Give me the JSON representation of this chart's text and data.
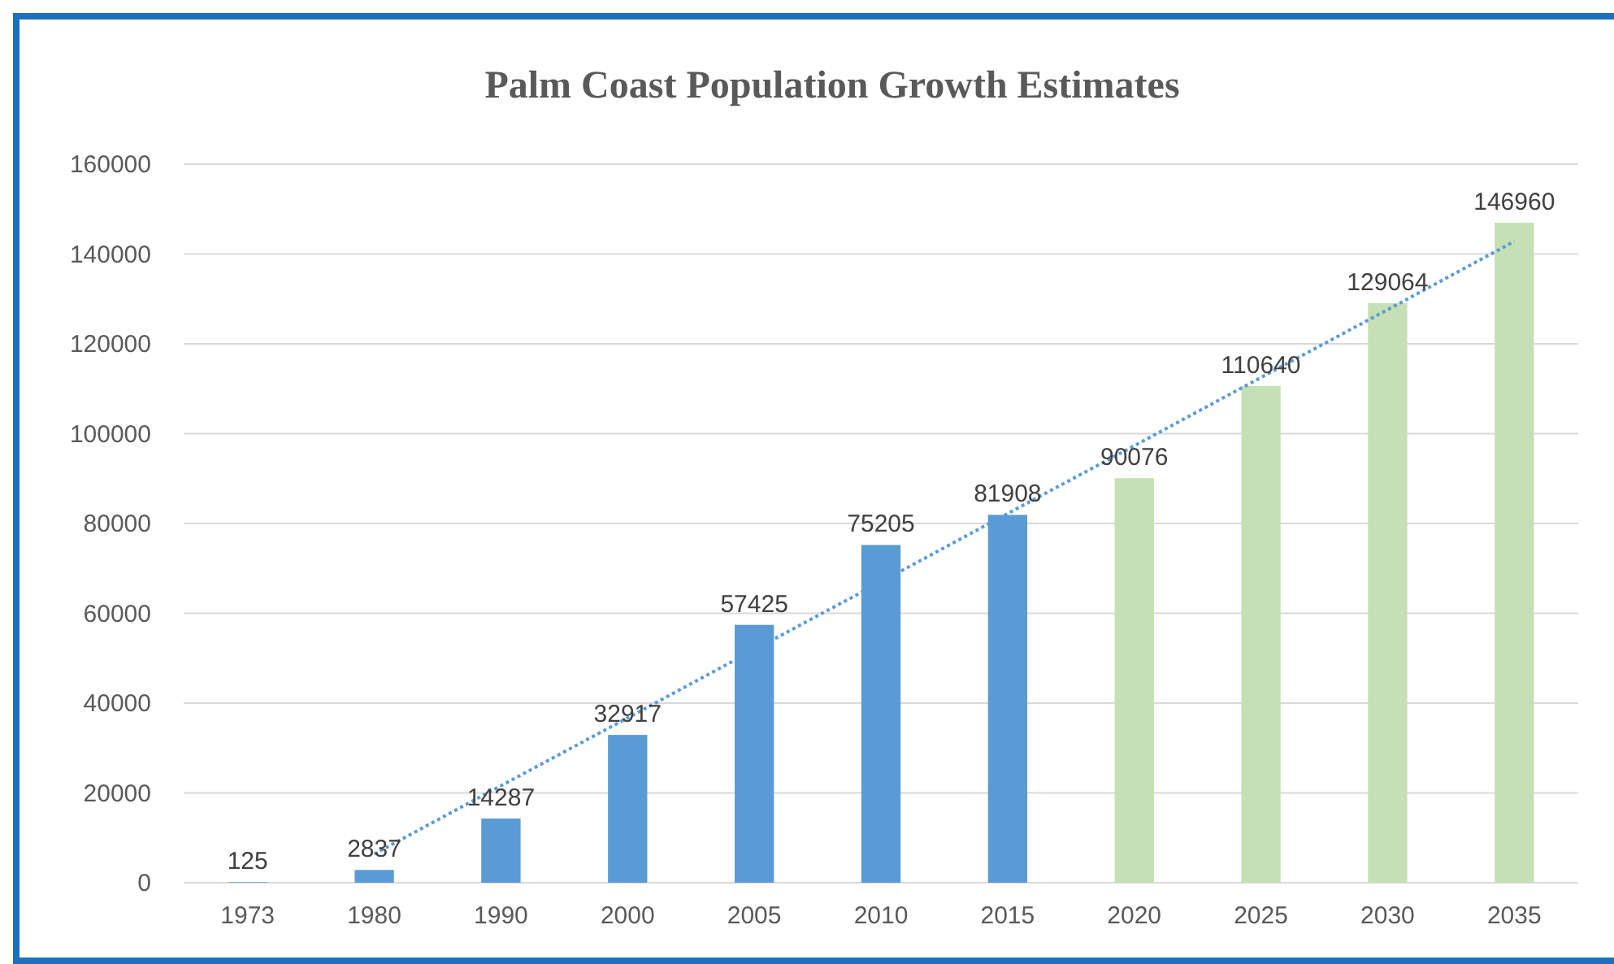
{
  "chart_data": {
    "type": "bar",
    "title": "Palm Coast Population Growth Estimates",
    "categories": [
      "1973",
      "1980",
      "1990",
      "2000",
      "2005",
      "2010",
      "2015",
      "2020",
      "2025",
      "2030",
      "2035"
    ],
    "series": [
      {
        "values": [
          125,
          2837,
          14287,
          32917,
          57425,
          75205,
          81908,
          90076,
          110640,
          129064,
          146960
        ],
        "colors": [
          "#5b9bd5",
          "#5b9bd5",
          "#5b9bd5",
          "#5b9bd5",
          "#5b9bd5",
          "#5b9bd5",
          "#5b9bd5",
          "#c5e0b4",
          "#c5e0b4",
          "#c5e0b4",
          "#c5e0b4"
        ],
        "value_labels": [
          "125",
          "2837",
          "14287",
          "32917",
          "57425",
          "75205",
          "81908",
          "90076",
          "110640",
          "129064",
          "146960"
        ]
      },
      {
        "type": "line",
        "values": [
          null,
          6400,
          21600,
          36700,
          51900,
          67000,
          82200,
          97300,
          112500,
          127600,
          142800
        ],
        "color": "#5b9bd5",
        "line_style": "dotted",
        "marker": "none"
      }
    ],
    "ylim": [
      0,
      160000
    ],
    "yticks": [
      0,
      20000,
      40000,
      60000,
      80000,
      100000,
      120000,
      140000,
      160000
    ],
    "grid": "y"
  }
}
